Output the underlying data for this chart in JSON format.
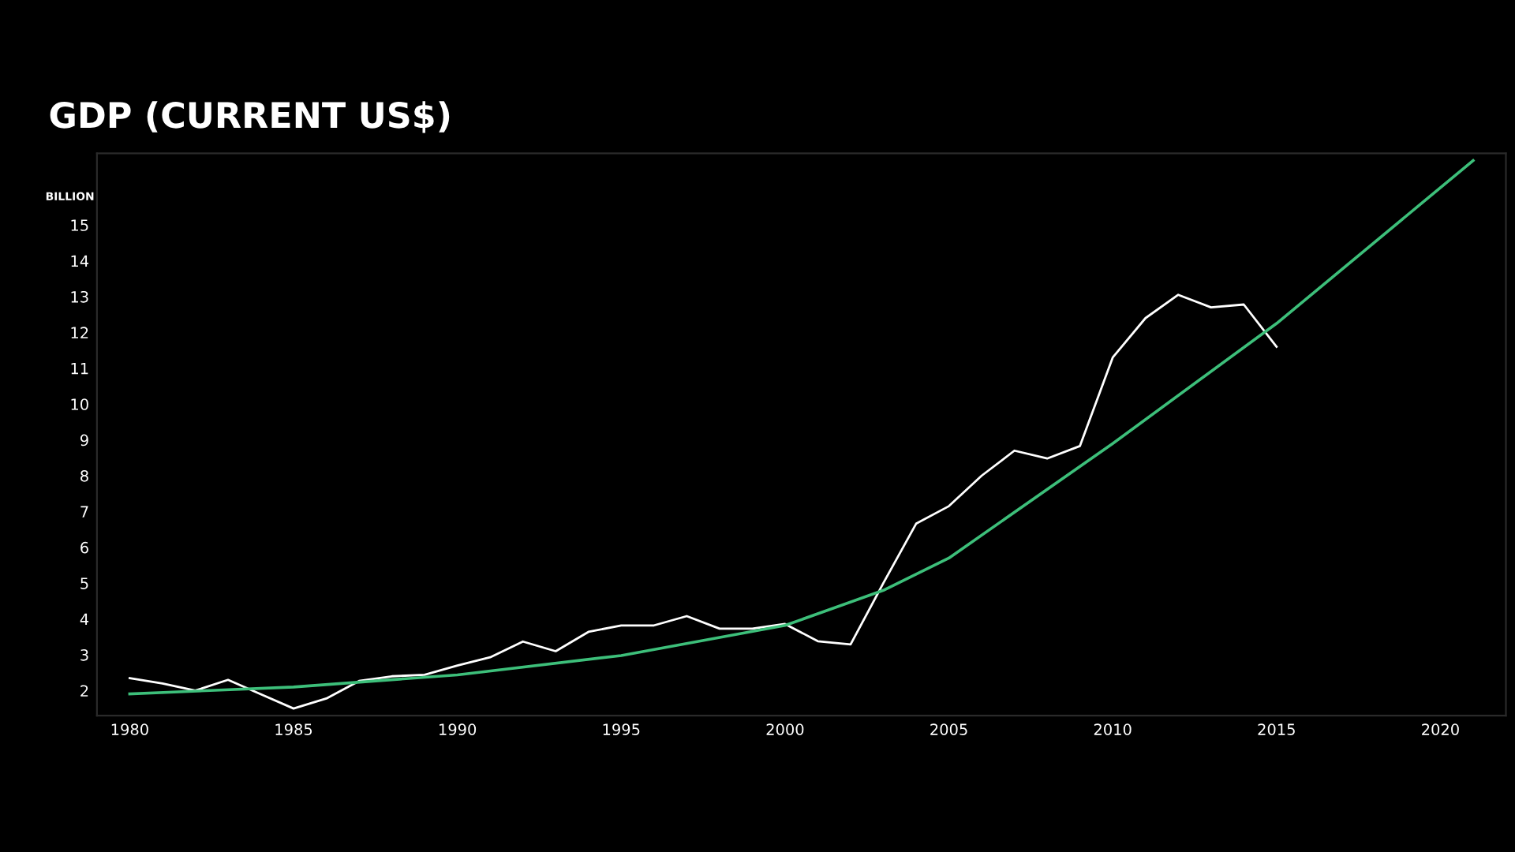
{
  "chart_data": {
    "type": "line",
    "title": "GDP (CURRENT US$)",
    "ylabel": "BILLION",
    "xlim": [
      1979,
      2022
    ],
    "xticks": [
      1980,
      1985,
      1990,
      1995,
      2000,
      2005,
      2010,
      2015,
      2020
    ],
    "ylim": [
      1.3,
      17
    ],
    "yticks": [
      2,
      3,
      4,
      5,
      6,
      7,
      8,
      9,
      10,
      11,
      12,
      13,
      14,
      15
    ],
    "grid": false,
    "legend": false,
    "marker": "none",
    "line_style": "solid",
    "series": [
      {
        "color": "#ffffff",
        "x": [
          1980,
          1981,
          1982,
          1983,
          1984,
          1985,
          1986,
          1987,
          1988,
          1989,
          1990,
          1991,
          1992,
          1993,
          1994,
          1995,
          1996,
          1997,
          1998,
          1999,
          2000,
          2001,
          2002,
          2003,
          2004,
          2005,
          2006,
          2007,
          2008,
          2009,
          2010,
          2011,
          2012,
          2013,
          2014,
          2015
        ],
        "values": [
          2.35,
          2.2,
          2.0,
          2.3,
          1.9,
          1.5,
          1.78,
          2.27,
          2.4,
          2.44,
          2.7,
          2.93,
          3.37,
          3.1,
          3.64,
          3.82,
          3.82,
          4.08,
          3.73,
          3.73,
          3.86,
          3.38,
          3.29,
          5.0,
          6.66,
          7.15,
          8.0,
          8.7,
          8.48,
          8.83,
          11.3,
          12.4,
          13.05,
          12.7,
          12.78,
          11.6
        ]
      },
      {
        "color": "#3dbf7a",
        "x": [
          1980,
          1985,
          1990,
          1995,
          2000,
          2003,
          2005,
          2010,
          2015,
          2021
        ],
        "values": [
          1.91,
          2.1,
          2.44,
          2.98,
          3.82,
          4.8,
          5.7,
          8.9,
          12.25,
          16.8
        ]
      }
    ]
  }
}
